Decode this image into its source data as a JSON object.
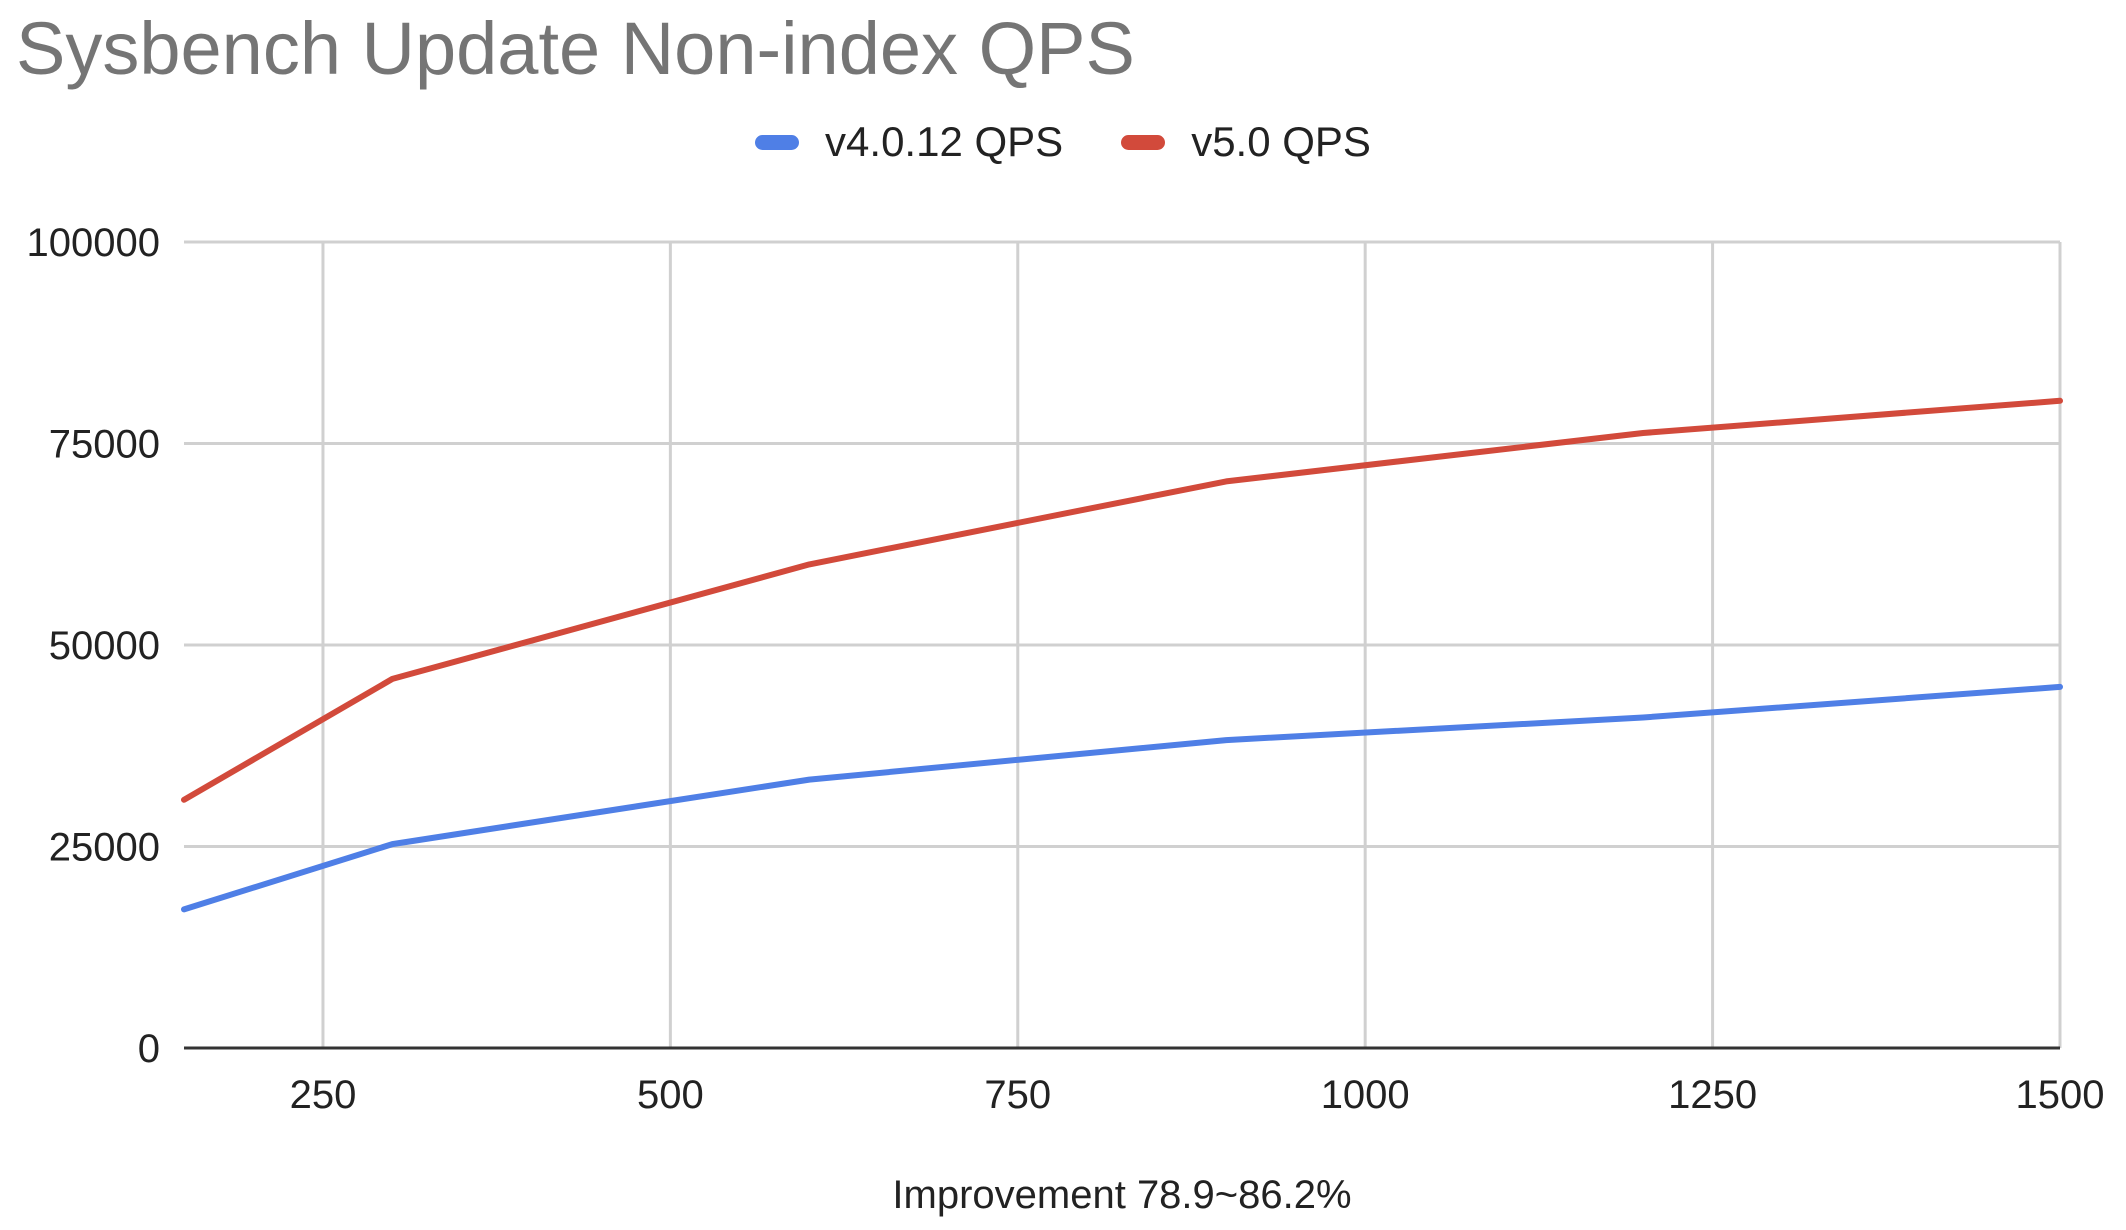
{
  "chart_data": {
    "type": "line",
    "title": "Sysbench Update Non-index QPS",
    "xlabel": "Improvement 78.9~86.2%",
    "ylabel": "",
    "x": [
      150,
      300,
      600,
      900,
      1200,
      1500
    ],
    "xlim": [
      150,
      1500
    ],
    "ylim": [
      0,
      100000
    ],
    "xticks": [
      250,
      500,
      750,
      1000,
      1250,
      1500
    ],
    "yticks": [
      0,
      25000,
      50000,
      75000,
      100000
    ],
    "grid": true,
    "legend": "top-center",
    "series": [
      {
        "name": "v4.0.12 QPS",
        "color": "#4f7fe6",
        "values": [
          17200,
          25300,
          33300,
          38200,
          41000,
          44800
        ]
      },
      {
        "name": "v5.0 QPS",
        "color": "#d24a3b",
        "values": [
          30800,
          45800,
          60000,
          70300,
          76300,
          80300
        ]
      }
    ]
  }
}
